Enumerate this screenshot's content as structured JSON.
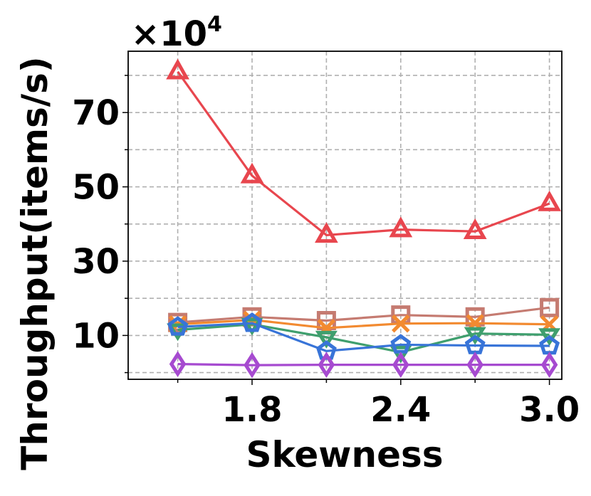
{
  "chart_data": {
    "type": "line",
    "xlabel": "Skewness",
    "ylabel": "Throughput(items/s)",
    "y_multiplier_base": "×10",
    "y_multiplier_exp": "4",
    "xlim": [
      1.3,
      3.05
    ],
    "ylim": [
      -1.8,
      86.5
    ],
    "x_ticks": [
      {
        "value": 1.8,
        "label": "1.8"
      },
      {
        "value": 2.4,
        "label": "2.4"
      },
      {
        "value": 3.0,
        "label": "3.0"
      }
    ],
    "x_minor_ticks": [
      1.5,
      2.1,
      2.7
    ],
    "y_ticks": [
      {
        "value": 10,
        "label": "10"
      },
      {
        "value": 30,
        "label": "30"
      },
      {
        "value": 50,
        "label": "50"
      },
      {
        "value": 70,
        "label": "70"
      }
    ],
    "y_minor_ticks": [
      0,
      20,
      40,
      60,
      80
    ],
    "grid": true,
    "x": [
      1.5,
      1.8,
      2.1,
      2.4,
      2.7,
      3.0
    ],
    "series": [
      {
        "color": "#e8464e",
        "marker": "triangle",
        "values": [
          81,
          53,
          37,
          38.5,
          38,
          45.5
        ]
      },
      {
        "color": "#c57b71",
        "marker": "square",
        "values": [
          13.5,
          15,
          14,
          15.5,
          15,
          17.5
        ]
      },
      {
        "color": "#f28a30",
        "marker": "x",
        "values": [
          13,
          14.2,
          12,
          13.2,
          13.3,
          13
        ]
      },
      {
        "color": "#3f9f6e",
        "marker": "down-triangle",
        "values": [
          11.5,
          13,
          9.5,
          5.5,
          10.5,
          10.2
        ]
      },
      {
        "color": "#3874d8",
        "marker": "pentagon",
        "values": [
          12.3,
          13.3,
          5.8,
          7.5,
          7.3,
          7.2
        ]
      },
      {
        "color": "#a64ad0",
        "marker": "diamond",
        "values": [
          2.3,
          2,
          2.1,
          2.1,
          2.1,
          2.1
        ]
      }
    ]
  }
}
